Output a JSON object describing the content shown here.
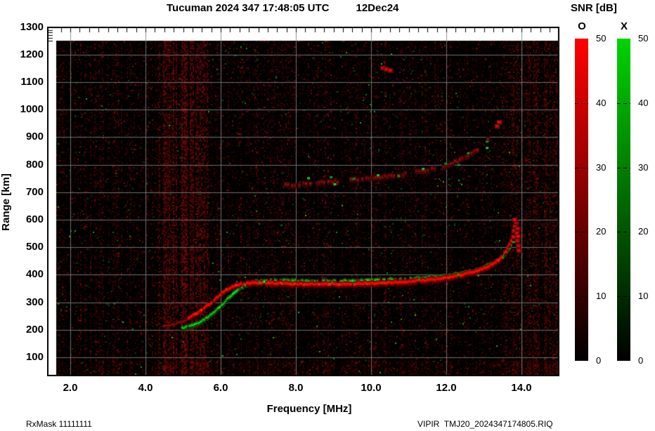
{
  "header": {
    "datetime": "Tucuman 2024 347 17:48:05 UTC",
    "date": "12Dec24"
  },
  "footer": {
    "left": "RxMask 11111111",
    "right": "VIPIR  TMJ20_2024347174805.RIQ"
  },
  "colorbar": {
    "title": "SNR [dB]",
    "o_label": "O",
    "x_label": "X",
    "tick_values": [
      50,
      40,
      30,
      20,
      10,
      0
    ],
    "tick_labels": [
      "50",
      "40",
      "30",
      "20",
      "10",
      "0"
    ],
    "o_top_color": "#ff0000",
    "x_top_color": "#00d400",
    "bottom_color": "#000000"
  },
  "chart_data": {
    "type": "heatmap",
    "title": "Tucuman 2024 347 17:48:05 UTC 12Dec24",
    "xlabel": "Frequency [MHz]",
    "ylabel": "Range [km]",
    "xlim": [
      1.4,
      15.0
    ],
    "ylim": [
      35,
      1300
    ],
    "data_extent": {
      "f_min": 1.63,
      "f_max": 15.0,
      "km_min": 36,
      "km_max": 1250
    },
    "x_ticks": [
      2,
      4,
      6,
      8,
      10,
      12,
      14
    ],
    "x_tick_labels": [
      "2.0",
      "4.0",
      "6.0",
      "8.0",
      "10.0",
      "12.0",
      "14.0"
    ],
    "y_ticks": [
      100,
      200,
      300,
      400,
      500,
      600,
      700,
      800,
      900,
      1000,
      1100,
      1200,
      1300
    ],
    "y_tick_labels": [
      "100",
      "200",
      "300",
      "400",
      "500",
      "600",
      "700",
      "800",
      "900",
      "1000",
      "1100",
      "1200",
      "1300"
    ],
    "grid": {
      "on": true,
      "color": "#808080",
      "x_step_mhz": 2,
      "y_step_km": 100
    },
    "background_color": "#000000",
    "legend_position": "right colorbars O (red) and X (green), SNR 0-50 dB",
    "series": [
      {
        "name": "O-mode first-hop echo",
        "color": "#ff0000",
        "points": [
          [
            4.45,
            216
          ],
          [
            4.6,
            219
          ],
          [
            4.75,
            224
          ],
          [
            4.9,
            230
          ],
          [
            5.05,
            238
          ],
          [
            5.2,
            248
          ],
          [
            5.35,
            260
          ],
          [
            5.5,
            274
          ],
          [
            5.65,
            290
          ],
          [
            5.8,
            308
          ],
          [
            5.95,
            326
          ],
          [
            6.1,
            342
          ],
          [
            6.25,
            354
          ],
          [
            6.4,
            362
          ],
          [
            6.55,
            367
          ],
          [
            6.7,
            369
          ],
          [
            7.0,
            370
          ],
          [
            7.4,
            369
          ],
          [
            7.8,
            367
          ],
          [
            8.2,
            366
          ],
          [
            8.6,
            366
          ],
          [
            9.0,
            366
          ],
          [
            9.4,
            367
          ],
          [
            9.8,
            368
          ],
          [
            10.2,
            370
          ],
          [
            10.6,
            372
          ],
          [
            11.0,
            375
          ],
          [
            11.4,
            379
          ],
          [
            11.8,
            385
          ],
          [
            12.1,
            392
          ],
          [
            12.4,
            400
          ],
          [
            12.7,
            410
          ],
          [
            12.9,
            419
          ],
          [
            13.1,
            430
          ],
          [
            13.25,
            442
          ],
          [
            13.38,
            455
          ],
          [
            13.48,
            470
          ],
          [
            13.57,
            487
          ],
          [
            13.64,
            506
          ],
          [
            13.7,
            526
          ],
          [
            13.74,
            545
          ]
        ]
      },
      {
        "name": "X-mode first-hop echo",
        "color": "#00d400",
        "points": [
          [
            4.95,
            206
          ],
          [
            5.1,
            210
          ],
          [
            5.25,
            217
          ],
          [
            5.4,
            226
          ],
          [
            5.55,
            238
          ],
          [
            5.7,
            252
          ],
          [
            5.85,
            269
          ],
          [
            6.0,
            289
          ],
          [
            6.15,
            310
          ],
          [
            6.3,
            331
          ],
          [
            6.45,
            349
          ],
          [
            6.6,
            361
          ],
          [
            6.75,
            369
          ],
          [
            6.9,
            374
          ],
          [
            7.2,
            377
          ],
          [
            7.6,
            378
          ],
          [
            8.0,
            377
          ],
          [
            8.4,
            376
          ],
          [
            8.8,
            376
          ],
          [
            9.2,
            377
          ],
          [
            9.6,
            378
          ],
          [
            10.0,
            379
          ],
          [
            10.4,
            381
          ],
          [
            10.8,
            383
          ],
          [
            11.2,
            386
          ],
          [
            11.6,
            390
          ],
          [
            12.0,
            396
          ],
          [
            12.3,
            403
          ],
          [
            12.6,
            411
          ],
          [
            12.85,
            420
          ],
          [
            13.05,
            430
          ],
          [
            13.22,
            441
          ],
          [
            13.36,
            453
          ],
          [
            13.48,
            467
          ],
          [
            13.58,
            482
          ],
          [
            13.66,
            498
          ],
          [
            13.72,
            514
          ]
        ]
      },
      {
        "name": "second-reflection echo (faint red)",
        "color": "#8a1010",
        "points": [
          [
            7.7,
            727
          ],
          [
            8.0,
            730
          ],
          [
            8.3,
            733
          ],
          [
            8.6,
            736
          ],
          [
            8.9,
            739
          ],
          [
            9.2,
            742
          ],
          [
            9.5,
            746
          ],
          [
            9.8,
            750
          ],
          [
            10.1,
            754
          ],
          [
            10.4,
            759
          ],
          [
            10.7,
            764
          ],
          [
            11.0,
            770
          ],
          [
            11.3,
            777
          ],
          [
            11.6,
            786
          ],
          [
            11.9,
            796
          ],
          [
            12.15,
            808
          ],
          [
            12.4,
            822
          ],
          [
            12.6,
            838
          ],
          [
            12.8,
            856
          ],
          [
            12.95,
            874
          ],
          [
            13.08,
            893
          ],
          [
            13.18,
            912
          ],
          [
            13.26,
            930
          ]
        ]
      },
      {
        "name": "spread-F red blobs near foF2",
        "color": "#c01010",
        "points": [
          [
            13.77,
            560
          ],
          [
            13.8,
            576
          ],
          [
            13.83,
            590
          ],
          [
            13.76,
            538
          ],
          [
            13.85,
            552
          ],
          [
            13.87,
            568
          ],
          [
            13.88,
            540
          ],
          [
            13.86,
            524
          ],
          [
            13.89,
            505
          ],
          [
            13.9,
            488
          ],
          [
            13.79,
            600
          ],
          [
            13.32,
            940
          ],
          [
            13.38,
            955
          ],
          [
            10.28,
            1152
          ],
          [
            10.38,
            1147
          ],
          [
            10.48,
            1143
          ]
        ]
      },
      {
        "name": "green specks on second-reflection trace",
        "color": "#1fae2e",
        "points": [
          [
            8.3,
            752
          ],
          [
            8.9,
            756
          ],
          [
            9.5,
            750
          ],
          [
            10.15,
            763
          ],
          [
            10.7,
            760
          ],
          [
            11.35,
            786
          ],
          [
            11.95,
            805
          ],
          [
            12.55,
            843
          ],
          [
            13.05,
            885
          ],
          [
            12.3,
            800
          ],
          [
            9.0,
            730
          ],
          [
            13.05,
            862
          ],
          [
            13.75,
            520
          ]
        ]
      }
    ],
    "noise": {
      "description": "sparse dark-red speckle over black with rare green specks",
      "red_streak_band_mhz": [
        4.3,
        5.7
      ],
      "right_band_mhz": [
        13.5,
        15.0
      ],
      "bottom_boost_below_km": 90
    }
  },
  "axes": {
    "xlabel": "Frequency [MHz]",
    "ylabel": "Range [km]"
  }
}
